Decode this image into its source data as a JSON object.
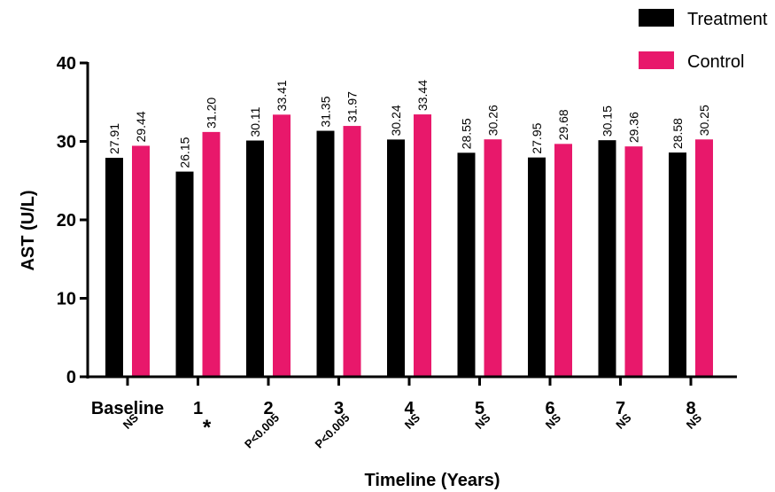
{
  "chart_data": {
    "type": "bar",
    "xlabel": "Timeline (Years)",
    "ylabel": "AST (U/L)",
    "ylim": [
      0,
      40
    ],
    "yticks": [
      0,
      10,
      20,
      30,
      40
    ],
    "categories": [
      "Baseline",
      "1",
      "2",
      "3",
      "4",
      "5",
      "6",
      "7",
      "8"
    ],
    "series": [
      {
        "name": "Treatment",
        "color": "#000000",
        "values": [
          27.91,
          26.15,
          30.11,
          31.35,
          30.24,
          28.55,
          27.95,
          30.15,
          28.58
        ],
        "labels": [
          "27.91",
          "26.15",
          "30.11",
          "31.35",
          "30.24",
          "28.55",
          "27.95",
          "30.15",
          "28.58"
        ]
      },
      {
        "name": "Control",
        "color": "#e8186b",
        "values": [
          29.44,
          31.2,
          33.41,
          31.97,
          33.44,
          30.26,
          29.68,
          29.36,
          30.25
        ],
        "labels": [
          "29.44",
          "31.20",
          "33.41",
          "31.97",
          "33.44",
          "30.26",
          "29.68",
          "29.36",
          "30.25"
        ]
      }
    ],
    "significance": [
      "NS",
      "*",
      "P<0.005",
      "P<0.005",
      "NS",
      "NS",
      "NS",
      "NS",
      "NS"
    ],
    "legend_position": "top-right",
    "grid": false
  }
}
